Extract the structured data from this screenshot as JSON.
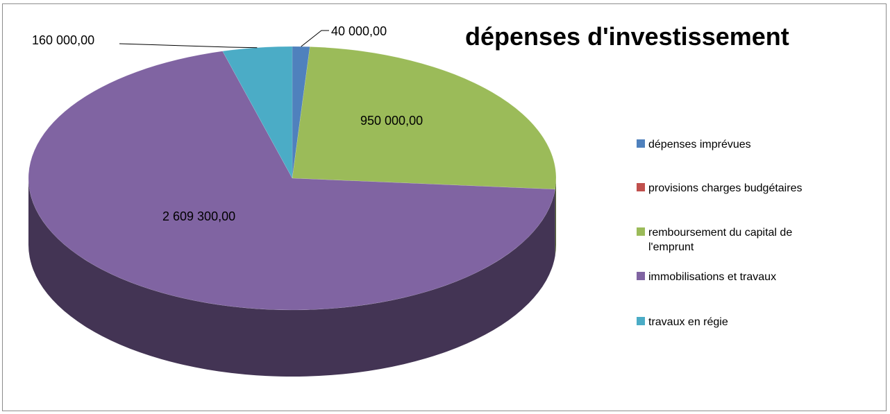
{
  "chart_data": {
    "type": "pie",
    "title": "dépenses d'investissement",
    "categories": [
      "dépenses imprévues",
      "provisions charges budgétaires",
      "remboursement du capital de l'emprunt",
      "immobilisations et travaux",
      "travaux en régie"
    ],
    "values": [
      40000,
      0,
      950000,
      2609300,
      160000
    ],
    "data_labels": [
      "40 000,00",
      "",
      "950 000,00",
      "2 609 300,00",
      "160 000,00"
    ],
    "colors": [
      "#4F81BD",
      "#C0504D",
      "#9BBB59",
      "#8064A2",
      "#4BACC6"
    ],
    "legend_position": "right",
    "style": "3d"
  },
  "legend": {
    "items": [
      {
        "label": "dépenses imprévues"
      },
      {
        "label": "provisions charges budgétaires"
      },
      {
        "label_lines": [
          "remboursement du capital de",
          "l'emprunt"
        ]
      },
      {
        "label": "immobilisations et travaux"
      },
      {
        "label": "travaux en régie"
      }
    ]
  }
}
